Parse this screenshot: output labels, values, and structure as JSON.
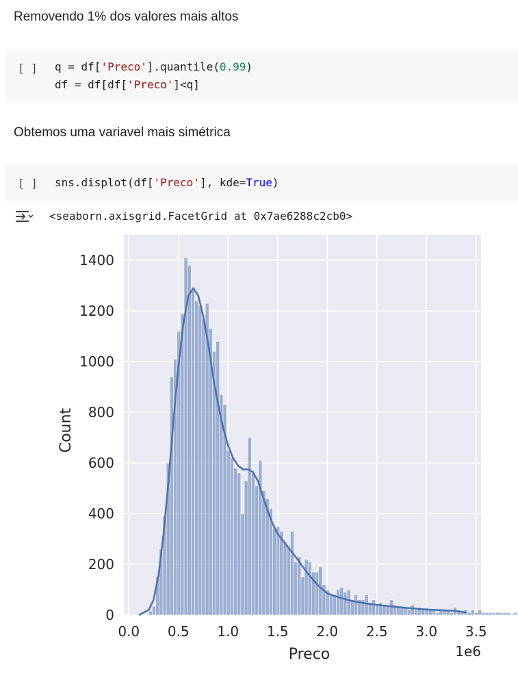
{
  "cells": {
    "md1": "Removendo 1% dos valores mais altos",
    "code1": {
      "run_label": "[ ]",
      "line1": {
        "a": "q = df[",
        "b": "'Preco'",
        "c": "].quantile(",
        "d": "0.99",
        "e": ")"
      },
      "line2": {
        "a": "df = df[df[",
        "b": "'Preco'",
        "c": "]<q]"
      }
    },
    "md2": "Obtemos uma variavel mais simétrica",
    "code2": {
      "run_label": "[ ]",
      "line1": {
        "a": "sns.displot(df[",
        "b": "'Preco'",
        "c": "], kde=",
        "d": "True",
        "e": ")"
      }
    },
    "output_text": "<seaborn.axisgrid.FacetGrid at 0x7ae6288c2cb0>",
    "output_icon": "output-toggle-icon"
  },
  "colors": {
    "plot_bg": "#eaeaf2",
    "bar": "#4c72b0",
    "kde": "#4c72b0"
  },
  "chart_data": {
    "type": "bar",
    "xlabel": "Preco",
    "ylabel": "Count",
    "offset_label": "1e6",
    "xlim": [
      -0.05,
      3.55
    ],
    "ylim": [
      0,
      1500
    ],
    "xticks": [
      0.0,
      0.5,
      1.0,
      1.5,
      2.0,
      2.5,
      3.0,
      3.5
    ],
    "xtick_labels": [
      "0.0",
      "0.5",
      "1.0",
      "1.5",
      "2.0",
      "2.5",
      "3.0",
      "3.5"
    ],
    "yticks": [
      0,
      200,
      400,
      600,
      800,
      1000,
      1200,
      1400
    ],
    "ytick_labels": [
      "0",
      "200",
      "400",
      "600",
      "800",
      "1000",
      "1200",
      "1400"
    ],
    "grid": true,
    "bin_start": 0.2,
    "bin_width": 0.0357,
    "values": [
      15,
      35,
      150,
      260,
      390,
      600,
      940,
      1010,
      1120,
      1190,
      1410,
      1380,
      1280,
      1240,
      1220,
      1170,
      1230,
      1130,
      1040,
      1080,
      870,
      830,
      650,
      620,
      580,
      560,
      400,
      530,
      700,
      560,
      510,
      610,
      490,
      460,
      420,
      340,
      350,
      330,
      290,
      270,
      330,
      210,
      230,
      150,
      220,
      210,
      170,
      170,
      190,
      120,
      100,
      80,
      80,
      100,
      110,
      90,
      100,
      60,
      80,
      60,
      60,
      80,
      50,
      60,
      40,
      50,
      40,
      40,
      60,
      40,
      30,
      30,
      30,
      20,
      40,
      20,
      30,
      20,
      30,
      20,
      20,
      10,
      20,
      20,
      20,
      10,
      30,
      20,
      10,
      20,
      10,
      20,
      10,
      20,
      10,
      10,
      10,
      10,
      10,
      10,
      10,
      10,
      5,
      10,
      5,
      5,
      5,
      5,
      5,
      10
    ],
    "kde_x": [
      0.1,
      0.2,
      0.25,
      0.3,
      0.35,
      0.4,
      0.45,
      0.5,
      0.55,
      0.6,
      0.65,
      0.7,
      0.75,
      0.8,
      0.85,
      0.9,
      0.95,
      1.0,
      1.05,
      1.1,
      1.15,
      1.2,
      1.25,
      1.3,
      1.35,
      1.4,
      1.45,
      1.5,
      1.6,
      1.7,
      1.8,
      1.9,
      2.0,
      2.1,
      2.2,
      2.3,
      2.4,
      2.5,
      2.6,
      2.7,
      2.8,
      2.9,
      3.0,
      3.1,
      3.2,
      3.3,
      3.4
    ],
    "kde_y": [
      0,
      20,
      60,
      160,
      320,
      530,
      770,
      980,
      1150,
      1260,
      1290,
      1260,
      1180,
      1070,
      940,
      830,
      740,
      670,
      620,
      590,
      575,
      575,
      565,
      530,
      470,
      410,
      360,
      320,
      270,
      220,
      165,
      120,
      85,
      72,
      60,
      52,
      45,
      40,
      36,
      32,
      28,
      25,
      22,
      20,
      18,
      16,
      10
    ]
  }
}
